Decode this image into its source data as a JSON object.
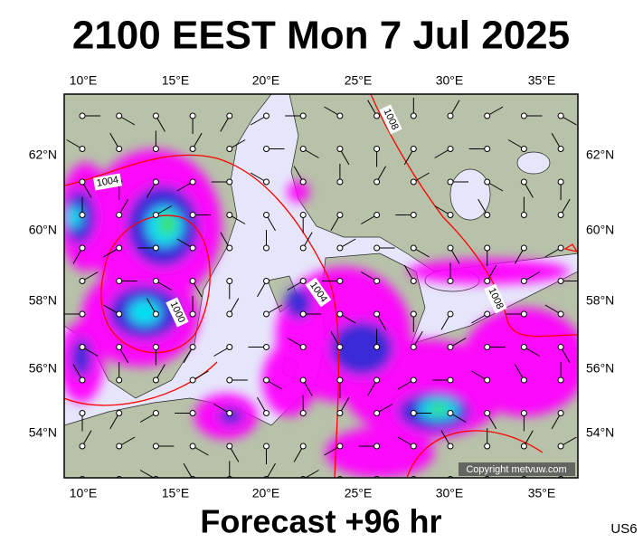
{
  "header": {
    "title": "2100 EEST Mon 7 Jul 2025"
  },
  "map": {
    "longitude_labels": [
      "10°E",
      "15°E",
      "20°E",
      "25°E",
      "30°E",
      "35°E"
    ],
    "latitude_labels": [
      "62°N",
      "60°N",
      "58°N",
      "56°N",
      "54°N"
    ],
    "isobar_labels": [
      "1004",
      "1008",
      "1000",
      "1004",
      "1008"
    ],
    "copyright": "Copyright metvuw.com"
  },
  "footer": {
    "forecast": "Forecast +96 hr",
    "code": "US6"
  }
}
